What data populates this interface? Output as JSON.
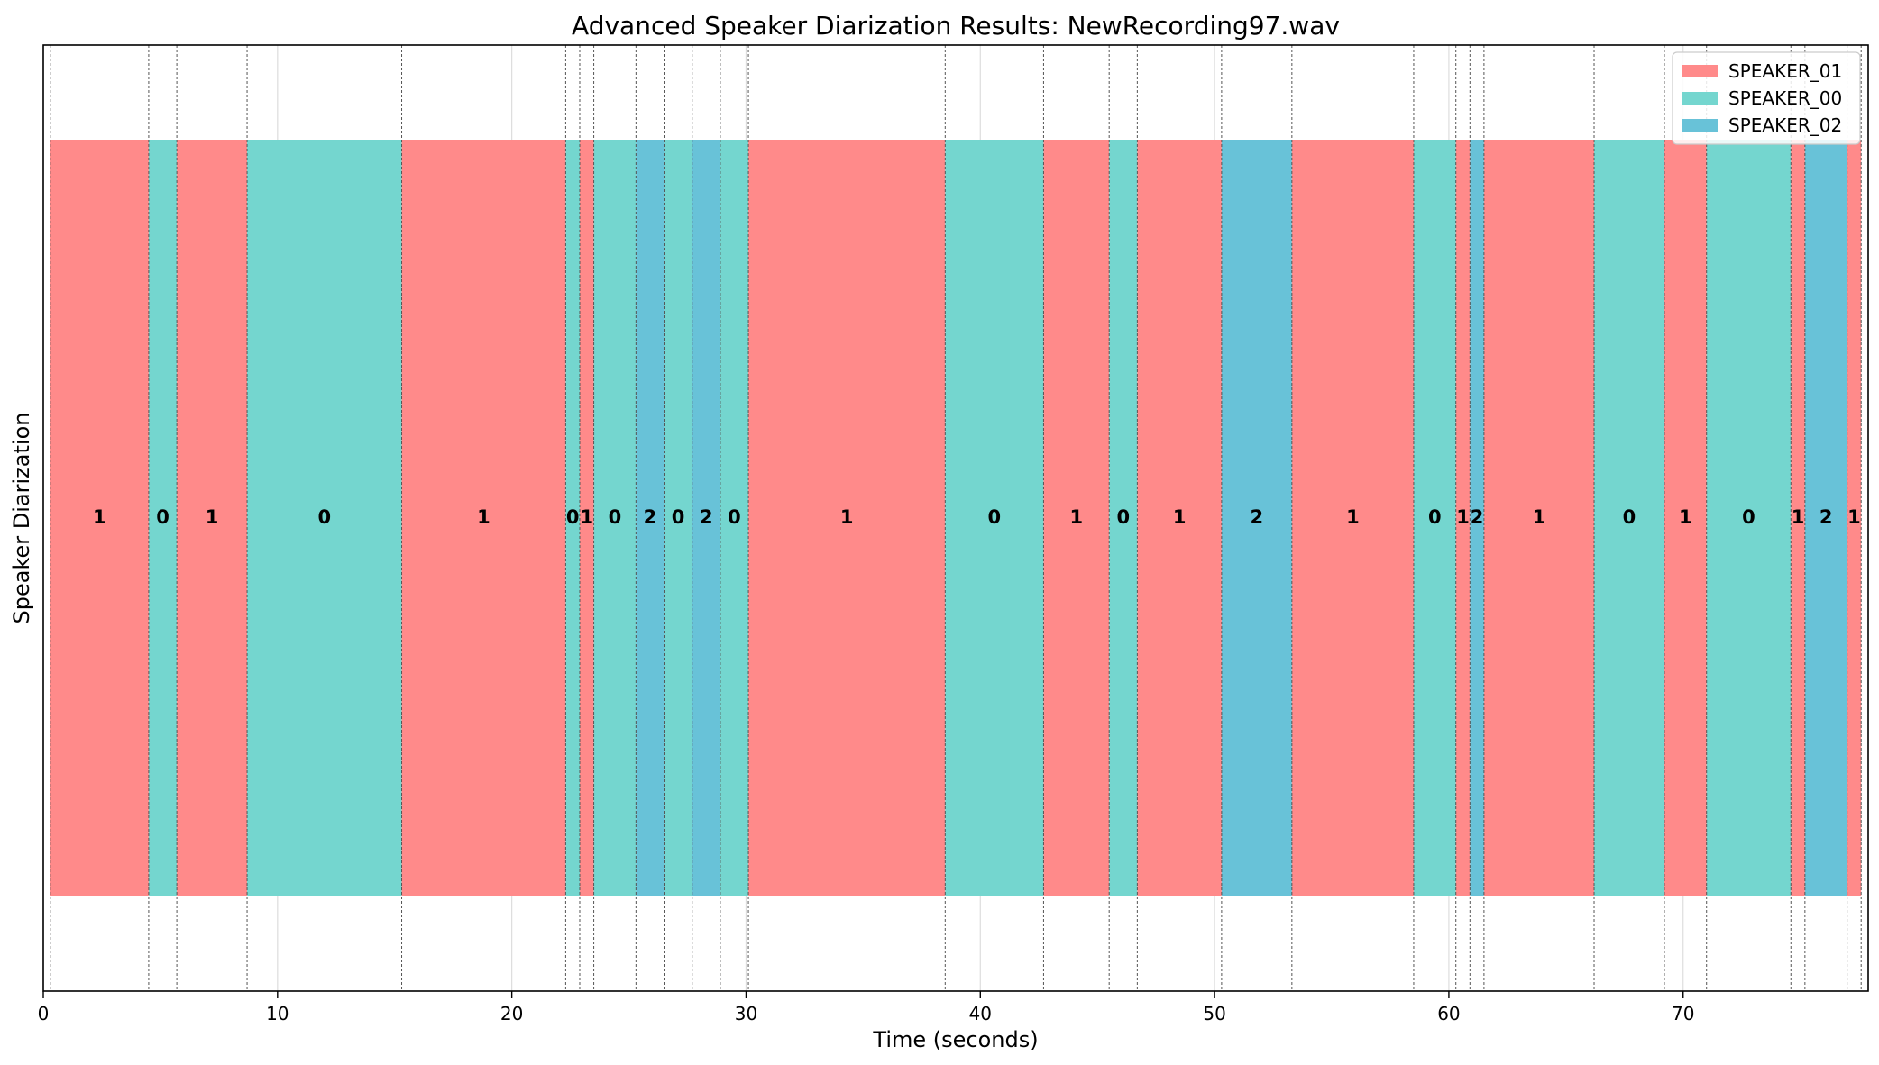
{
  "chart_data": {
    "type": "timeline",
    "title": "Advanced Speaker Diarization Results: NewRecording97.wav",
    "xlabel": "Time (seconds)",
    "ylabel": "Speaker Diarization",
    "xlim": [
      0,
      77.9
    ],
    "xticks": [
      0,
      10,
      20,
      30,
      40,
      50,
      60,
      70
    ],
    "grid": "vertical",
    "legend_position": "top-right",
    "series": [
      {
        "name": "SPEAKER_01",
        "color": "#FF8A8A"
      },
      {
        "name": "SPEAKER_00",
        "color": "#74D6CF"
      },
      {
        "name": "SPEAKER_02",
        "color": "#68C2D8"
      }
    ],
    "segments": [
      {
        "start": 0.3,
        "end": 4.5,
        "label": "1"
      },
      {
        "start": 4.5,
        "end": 5.7,
        "label": "0"
      },
      {
        "start": 5.7,
        "end": 8.7,
        "label": "1"
      },
      {
        "start": 8.7,
        "end": 15.3,
        "label": "0"
      },
      {
        "start": 15.3,
        "end": 22.3,
        "label": "1"
      },
      {
        "start": 22.3,
        "end": 22.9,
        "label": "0"
      },
      {
        "start": 22.9,
        "end": 23.5,
        "label": "1"
      },
      {
        "start": 23.5,
        "end": 25.3,
        "label": "0"
      },
      {
        "start": 25.3,
        "end": 26.5,
        "label": "2"
      },
      {
        "start": 26.5,
        "end": 27.7,
        "label": "0"
      },
      {
        "start": 27.7,
        "end": 28.9,
        "label": "2"
      },
      {
        "start": 28.9,
        "end": 30.1,
        "label": "0"
      },
      {
        "start": 30.1,
        "end": 38.5,
        "label": "1"
      },
      {
        "start": 38.5,
        "end": 42.7,
        "label": "0"
      },
      {
        "start": 42.7,
        "end": 45.5,
        "label": "1"
      },
      {
        "start": 45.5,
        "end": 46.7,
        "label": "0"
      },
      {
        "start": 46.7,
        "end": 50.3,
        "label": "1"
      },
      {
        "start": 50.3,
        "end": 53.3,
        "label": "2"
      },
      {
        "start": 53.3,
        "end": 58.5,
        "label": "1"
      },
      {
        "start": 58.5,
        "end": 60.3,
        "label": "0"
      },
      {
        "start": 60.3,
        "end": 60.9,
        "label": "1"
      },
      {
        "start": 60.9,
        "end": 61.5,
        "label": "2"
      },
      {
        "start": 61.5,
        "end": 66.2,
        "label": "1"
      },
      {
        "start": 66.2,
        "end": 69.2,
        "label": "0"
      },
      {
        "start": 69.2,
        "end": 71.0,
        "label": "1"
      },
      {
        "start": 71.0,
        "end": 74.6,
        "label": "0"
      },
      {
        "start": 74.6,
        "end": 75.2,
        "label": "1"
      },
      {
        "start": 75.2,
        "end": 77.0,
        "label": "2"
      },
      {
        "start": 77.0,
        "end": 77.6,
        "label": "1"
      }
    ]
  }
}
